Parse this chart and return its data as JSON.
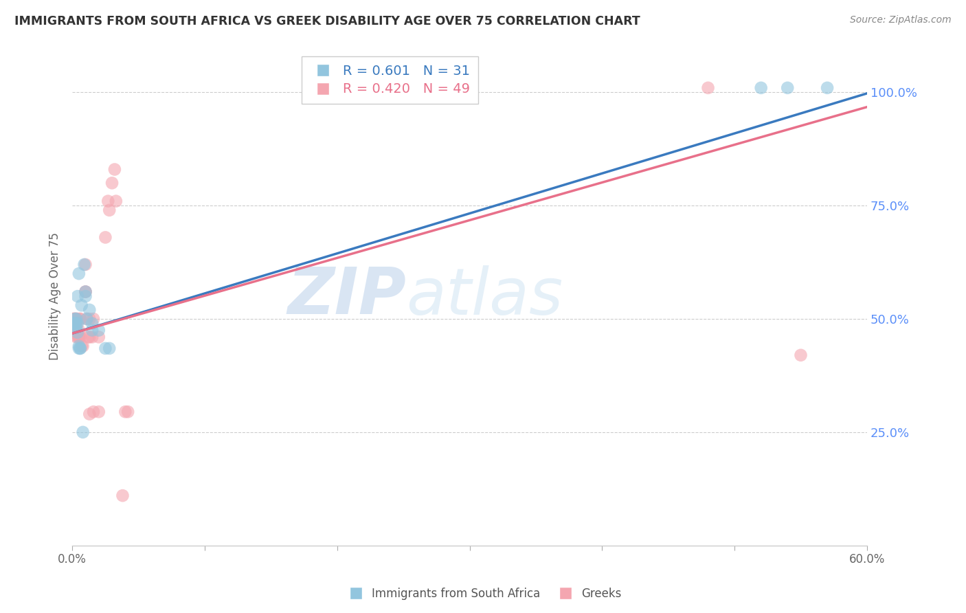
{
  "title": "IMMIGRANTS FROM SOUTH AFRICA VS GREEK DISABILITY AGE OVER 75 CORRELATION CHART",
  "source": "Source: ZipAtlas.com",
  "ylabel": "Disability Age Over 75",
  "x_min": 0.0,
  "x_max": 0.6,
  "y_min": 0.0,
  "y_max": 1.1,
  "yticks": [
    0.25,
    0.5,
    0.75,
    1.0
  ],
  "ytick_labels": [
    "25.0%",
    "50.0%",
    "75.0%",
    "100.0%"
  ],
  "xticks": [
    0.0,
    0.1,
    0.2,
    0.3,
    0.4,
    0.5,
    0.6
  ],
  "xtick_labels": [
    "0.0%",
    "",
    "",
    "",
    "",
    "",
    "60.0%"
  ],
  "blue_R": 0.601,
  "blue_N": 31,
  "pink_R": 0.42,
  "pink_N": 49,
  "blue_color": "#92c5de",
  "pink_color": "#f4a6b0",
  "blue_line_color": "#3a7abf",
  "pink_line_color": "#e8708a",
  "legend_label_blue": "Immigrants from South Africa",
  "legend_label_pink": "Greeks",
  "watermark_zip": "ZIP",
  "watermark_atlas": "atlas",
  "blue_regression": {
    "slope": 0.883,
    "intercept": 0.468
  },
  "pink_regression": {
    "slope": 0.833,
    "intercept": 0.468
  },
  "blue_points": [
    [
      0.001,
      0.49
    ],
    [
      0.001,
      0.49
    ],
    [
      0.002,
      0.49
    ],
    [
      0.002,
      0.5
    ],
    [
      0.002,
      0.49
    ],
    [
      0.003,
      0.5
    ],
    [
      0.003,
      0.48
    ],
    [
      0.003,
      0.49
    ],
    [
      0.004,
      0.49
    ],
    [
      0.004,
      0.47
    ],
    [
      0.004,
      0.55
    ],
    [
      0.005,
      0.6
    ],
    [
      0.005,
      0.44
    ],
    [
      0.005,
      0.435
    ],
    [
      0.006,
      0.435
    ],
    [
      0.006,
      0.435
    ],
    [
      0.007,
      0.53
    ],
    [
      0.008,
      0.25
    ],
    [
      0.009,
      0.62
    ],
    [
      0.01,
      0.55
    ],
    [
      0.01,
      0.56
    ],
    [
      0.011,
      0.5
    ],
    [
      0.013,
      0.52
    ],
    [
      0.015,
      0.49
    ],
    [
      0.015,
      0.475
    ],
    [
      0.02,
      0.475
    ],
    [
      0.025,
      0.435
    ],
    [
      0.028,
      0.435
    ],
    [
      0.52,
      1.01
    ],
    [
      0.54,
      1.01
    ],
    [
      0.57,
      1.01
    ]
  ],
  "pink_points": [
    [
      0.001,
      0.49
    ],
    [
      0.001,
      0.5
    ],
    [
      0.001,
      0.47
    ],
    [
      0.001,
      0.5
    ],
    [
      0.001,
      0.47
    ],
    [
      0.002,
      0.49
    ],
    [
      0.002,
      0.49
    ],
    [
      0.002,
      0.49
    ],
    [
      0.002,
      0.47
    ],
    [
      0.002,
      0.5
    ],
    [
      0.002,
      0.5
    ],
    [
      0.003,
      0.5
    ],
    [
      0.003,
      0.48
    ],
    [
      0.003,
      0.5
    ],
    [
      0.003,
      0.46
    ],
    [
      0.004,
      0.5
    ],
    [
      0.004,
      0.46
    ],
    [
      0.005,
      0.46
    ],
    [
      0.005,
      0.475
    ],
    [
      0.005,
      0.46
    ],
    [
      0.006,
      0.5
    ],
    [
      0.006,
      0.5
    ],
    [
      0.006,
      0.46
    ],
    [
      0.007,
      0.44
    ],
    [
      0.008,
      0.44
    ],
    [
      0.01,
      0.62
    ],
    [
      0.01,
      0.56
    ],
    [
      0.01,
      0.56
    ],
    [
      0.011,
      0.5
    ],
    [
      0.012,
      0.46
    ],
    [
      0.013,
      0.5
    ],
    [
      0.013,
      0.46
    ],
    [
      0.013,
      0.29
    ],
    [
      0.015,
      0.46
    ],
    [
      0.016,
      0.295
    ],
    [
      0.016,
      0.5
    ],
    [
      0.02,
      0.46
    ],
    [
      0.02,
      0.295
    ],
    [
      0.025,
      0.68
    ],
    [
      0.027,
      0.76
    ],
    [
      0.028,
      0.74
    ],
    [
      0.03,
      0.8
    ],
    [
      0.032,
      0.83
    ],
    [
      0.033,
      0.76
    ],
    [
      0.038,
      0.11
    ],
    [
      0.04,
      0.295
    ],
    [
      0.042,
      0.295
    ],
    [
      0.55,
      0.42
    ],
    [
      0.48,
      1.01
    ]
  ]
}
